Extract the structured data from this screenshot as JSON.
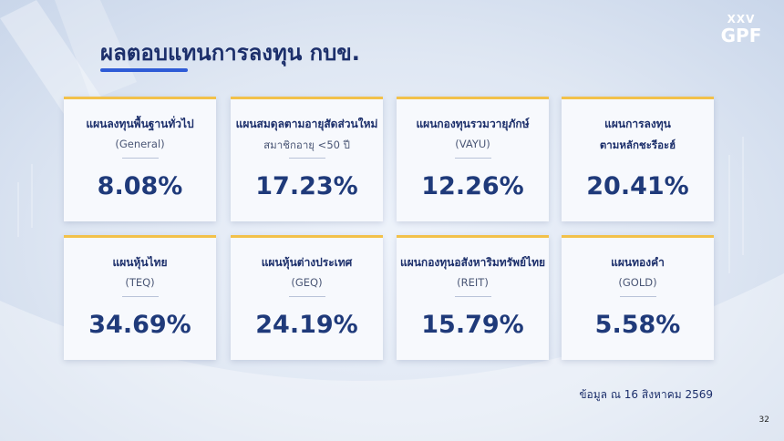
{
  "header": {
    "title": "ผลตอบแทนการลงทุน กบข.",
    "logo": "GPF"
  },
  "cards": [
    {
      "title": "แผนลงทุนพื้นฐานทั่วไป",
      "subtitle": "(General)",
      "value": "8.08%"
    },
    {
      "title": "แผนสมดุลตามอายุสัดส่วนใหม่",
      "subtitle": "สมาชิกอายุ <50 ปี",
      "value": "17.23%"
    },
    {
      "title": "แผนกองทุนรวมวายุภักษ์",
      "subtitle": "(VAYU)",
      "value": "12.26%"
    },
    {
      "title": "แผนการลงทุน",
      "subtitle": "ตามหลักชะรีอะฮ์",
      "value": "20.41%",
      "subtitle_bold": true
    },
    {
      "title": "แผนหุ้นไทย",
      "subtitle": "(TEQ)",
      "value": "34.69%"
    },
    {
      "title": "แผนหุ้นต่างประเทศ",
      "subtitle": "(GEQ)",
      "value": "24.19%"
    },
    {
      "title": "แผนกองทุนอสังหาริมทรัพย์ไทย",
      "subtitle": "(REIT)",
      "value": "15.79%"
    },
    {
      "title": "แผนทองคำ",
      "subtitle": "(GOLD)",
      "value": "5.58%"
    }
  ],
  "footer": {
    "note": "ข้อมูล ณ 16 สิงหาคม 2569",
    "page": "32"
  }
}
